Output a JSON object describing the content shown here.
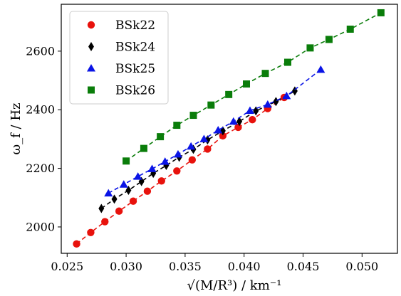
{
  "chart_data": {
    "type": "scatter",
    "xlabel": "√(M/R³) / km⁻¹",
    "ylabel": "ω_f / Hz",
    "xlim": [
      0.0245,
      0.053
    ],
    "ylim": [
      1910,
      2760
    ],
    "xticks": [
      "0.025",
      "0.030",
      "0.035",
      "0.040",
      "0.045",
      "0.050"
    ],
    "xtick_values": [
      0.025,
      0.03,
      0.035,
      0.04,
      0.045,
      0.05
    ],
    "yticks": [
      "2000",
      "2200",
      "2400",
      "2600"
    ],
    "ytick_values": [
      2000,
      2200,
      2400,
      2600
    ],
    "grid": false,
    "legend_position": "top-left",
    "series": [
      {
        "name": "BSk22",
        "marker": "circle",
        "color": "#e8120c",
        "line_style": "dashed",
        "x": [
          0.0258,
          0.027,
          0.0282,
          0.0294,
          0.0306,
          0.0318,
          0.033,
          0.0343,
          0.0356,
          0.0369,
          0.0382,
          0.0395,
          0.0407,
          0.042,
          0.0434
        ],
        "y": [
          1942,
          1981,
          2018,
          2054,
          2088,
          2122,
          2157,
          2191,
          2229,
          2266,
          2311,
          2340,
          2366,
          2404,
          2442
        ]
      },
      {
        "name": "BSk24",
        "marker": "diamond",
        "color": "#000000",
        "line_style": "dashed",
        "x": [
          0.0279,
          0.029,
          0.0302,
          0.0313,
          0.0323,
          0.0334,
          0.0345,
          0.0357,
          0.0369,
          0.0382,
          0.0396,
          0.041,
          0.0427,
          0.0443
        ],
        "y": [
          2063,
          2095,
          2125,
          2155,
          2183,
          2210,
          2238,
          2265,
          2297,
          2328,
          2360,
          2396,
          2428,
          2464
        ]
      },
      {
        "name": "BSk25",
        "marker": "triangle",
        "color": "#0a14e6",
        "line_style": "dashed",
        "x": [
          0.0285,
          0.0298,
          0.031,
          0.0322,
          0.0333,
          0.0344,
          0.0355,
          0.0366,
          0.0378,
          0.0391,
          0.0405,
          0.042,
          0.0436,
          0.0465
        ],
        "y": [
          2115,
          2145,
          2172,
          2198,
          2223,
          2248,
          2275,
          2300,
          2330,
          2360,
          2397,
          2418,
          2447,
          2537
        ]
      },
      {
        "name": "BSk26",
        "marker": "square",
        "color": "#0a7d0a",
        "line_style": "dashed",
        "x": [
          0.03,
          0.0315,
          0.0329,
          0.0343,
          0.0357,
          0.0372,
          0.0387,
          0.0402,
          0.0418,
          0.0437,
          0.0456,
          0.0472,
          0.049,
          0.0516
        ],
        "y": [
          2225,
          2268,
          2308,
          2347,
          2381,
          2416,
          2452,
          2488,
          2524,
          2562,
          2611,
          2640,
          2675,
          2731
        ]
      }
    ]
  }
}
